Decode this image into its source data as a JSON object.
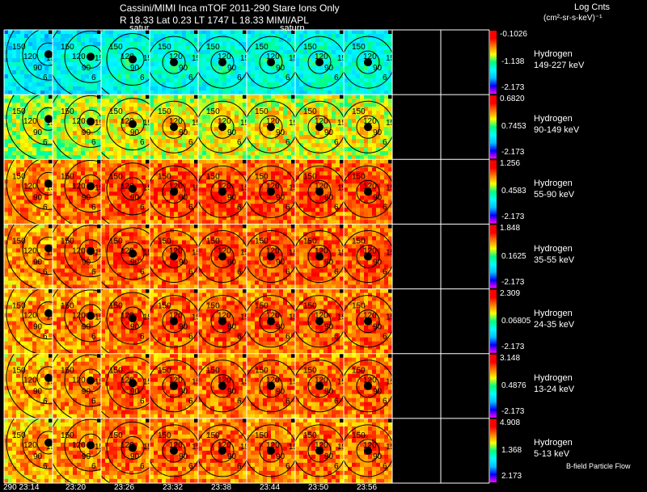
{
  "header": {
    "title_line1": "Cassini/MIMI Inca mTOF  2011-290   Stare   Ions Only",
    "title_line2": "R        18.33 Lat 0.23 LT 1747 L        18.33   MIMI/APL",
    "units_line1": "Log Cnts",
    "units_line2": "(cm²-sr-s-keV)⁻¹",
    "saturn_labels": [
      "satur",
      "saturn"
    ]
  },
  "footer": {
    "bfield_label": "B-field Particle Flow"
  },
  "colors": {
    "background": "#000000",
    "grid_line": "#ffffff",
    "colorbar_stops": [
      "#ff00ff",
      "#0000ff",
      "#00c0ff",
      "#00ffff",
      "#00ff80",
      "#ffff00",
      "#ff8000",
      "#ff0000",
      "#ff0000"
    ]
  },
  "chart_data": {
    "type": "heatmap",
    "title": "Cassini/MIMI Inca mTOF 2011-290 Stare Ions Only",
    "x_time_labels": [
      "290 23:14",
      "23:20",
      "23:26",
      "23:32",
      "23:38",
      "23:44",
      "23:50",
      "23:56"
    ],
    "contour_labels": [
      "150",
      "120",
      "90",
      "6",
      "150"
    ],
    "bands": [
      {
        "species": "Hydrogen",
        "energy": "149-227 keV",
        "cb_max": "-0.1026",
        "cb_mid": "-1.138",
        "cb_min": "-2.173",
        "level": 0.45
      },
      {
        "species": "Hydrogen",
        "energy": "90-149 keV",
        "cb_max": "0.6820",
        "cb_mid": "0.7453",
        "cb_min": "-2.173",
        "level": 0.68
      },
      {
        "species": "Hydrogen",
        "energy": "55-90 keV",
        "cb_max": "1.256",
        "cb_mid": "0.4583",
        "cb_min": "-2.173",
        "level": 0.85
      },
      {
        "species": "Hydrogen",
        "energy": "35-55 keV",
        "cb_max": "1.848",
        "cb_mid": "0.1625",
        "cb_min": "-2.173",
        "level": 0.84
      },
      {
        "species": "Hydrogen",
        "energy": "24-35 keV",
        "cb_max": "2.309",
        "cb_mid": "0.06805",
        "cb_min": "-2.173",
        "level": 0.83
      },
      {
        "species": "Hydrogen",
        "energy": "13-24 keV",
        "cb_max": "3.148",
        "cb_mid": "0.4876",
        "cb_min": "-2.173",
        "level": 0.82
      },
      {
        "species": "Hydrogen",
        "energy": "5-13 keV",
        "cb_max": "4.908",
        "cb_mid": "1.368",
        "cb_min": "2.173",
        "level": 0.82
      }
    ]
  }
}
